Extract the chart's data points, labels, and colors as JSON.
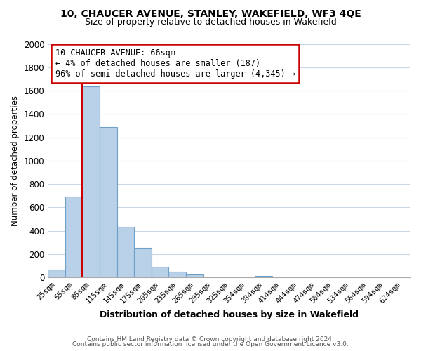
{
  "title": "10, CHAUCER AVENUE, STANLEY, WAKEFIELD, WF3 4QE",
  "subtitle": "Size of property relative to detached houses in Wakefield",
  "xlabel": "Distribution of detached houses by size in Wakefield",
  "ylabel": "Number of detached properties",
  "bar_labels": [
    "25sqm",
    "55sqm",
    "85sqm",
    "115sqm",
    "145sqm",
    "175sqm",
    "205sqm",
    "235sqm",
    "265sqm",
    "295sqm",
    "325sqm",
    "354sqm",
    "384sqm",
    "414sqm",
    "444sqm",
    "474sqm",
    "504sqm",
    "534sqm",
    "564sqm",
    "594sqm",
    "624sqm"
  ],
  "bar_values": [
    65,
    695,
    1635,
    1285,
    435,
    255,
    90,
    52,
    28,
    0,
    0,
    0,
    15,
    0,
    0,
    0,
    0,
    0,
    0,
    0,
    0
  ],
  "bar_color": "#b8d0e8",
  "bar_edge_color": "#6fa0c8",
  "vline_color": "#cc0000",
  "vline_x": 1.5,
  "annotation_title": "10 CHAUCER AVENUE: 66sqm",
  "annotation_line1": "← 4% of detached houses are smaller (187)",
  "annotation_line2": "96% of semi-detached houses are larger (4,345) →",
  "annotation_box_color": "#cc0000",
  "ylim": [
    0,
    2000
  ],
  "yticks": [
    0,
    200,
    400,
    600,
    800,
    1000,
    1200,
    1400,
    1600,
    1800,
    2000
  ],
  "footnote1": "Contains HM Land Registry data © Crown copyright and database right 2024.",
  "footnote2": "Contains public sector information licensed under the Open Government Licence v3.0.",
  "background_color": "#ffffff",
  "grid_color": "#c8d8e8"
}
